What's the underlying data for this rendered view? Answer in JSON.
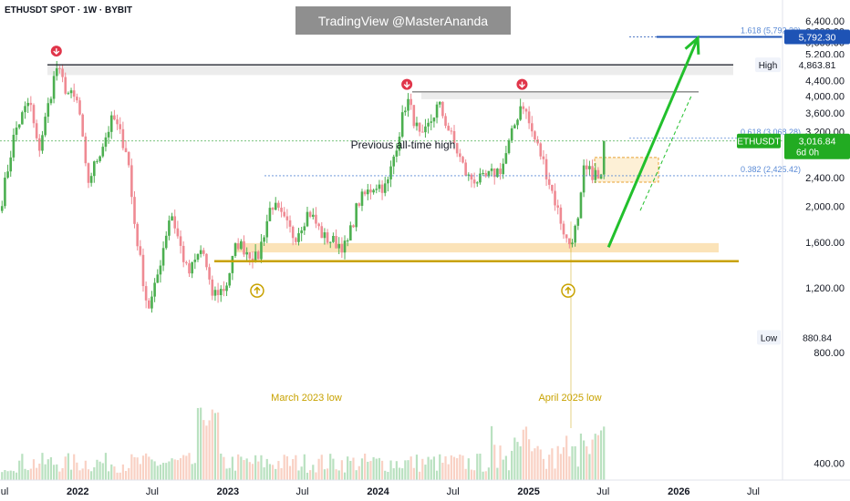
{
  "header": {
    "symbol_line": "ETHUSDT SPOT · 1W · BYBIT",
    "watermark": "TradingView @MasterAnanda"
  },
  "labels": {
    "previous_ath": "Previous all-time high",
    "march_low": "March 2023 low",
    "april_low": "April 2025 low",
    "high_tag": "High",
    "low_tag": "Low",
    "symbol_tag": "ETHUSDT",
    "countdown": "6d 0h"
  },
  "colors": {
    "up": "#22ab22",
    "down": "#f7525f",
    "up_candle": "#4caf50",
    "down_candle": "#ef8a93",
    "gold": "#c8a200",
    "sand": "#fbe3b8",
    "blue": "#1e53b5",
    "fib_blue": "#5b8bd6",
    "arrow_green": "#22c02c",
    "marker_red": "#e0354a"
  },
  "chart_data": {
    "type": "candlestick",
    "y_scale": "log",
    "ylim": [
      360,
      7300
    ],
    "y_ticks": [
      {
        "value": 400,
        "label": "400.00"
      },
      {
        "value": 800,
        "label": "800.00"
      },
      {
        "value": 1200,
        "label": "1,200.00"
      },
      {
        "value": 1600,
        "label": "1,600.00"
      },
      {
        "value": 2000,
        "label": "2,000.00"
      },
      {
        "value": 2400,
        "label": "2,400.00"
      },
      {
        "value": 2800,
        "label": "2,800.00"
      },
      {
        "value": 3200,
        "label": "3,200.00"
      },
      {
        "value": 3600,
        "label": "3,600.00"
      },
      {
        "value": 4000,
        "label": "4,000.00"
      },
      {
        "value": 4400,
        "label": "4,400.00"
      },
      {
        "value": 4800,
        "label": "4,800.00"
      },
      {
        "value": 5200,
        "label": "5,200.00"
      },
      {
        "value": 5600,
        "label": "5,600.00"
      },
      {
        "value": 6000,
        "label": "6,000.00"
      },
      {
        "value": 6400,
        "label": "6,400.00"
      }
    ],
    "x_ticks": [
      {
        "date": "2021-07-01",
        "label": "Jul"
      },
      {
        "date": "2022-01-01",
        "label": "2022"
      },
      {
        "date": "2022-07-01",
        "label": "Jul"
      },
      {
        "date": "2023-01-01",
        "label": "2023"
      },
      {
        "date": "2023-07-01",
        "label": "Jul"
      },
      {
        "date": "2024-01-01",
        "label": "2024"
      },
      {
        "date": "2024-07-01",
        "label": "Jul"
      },
      {
        "date": "2025-01-01",
        "label": "2025"
      },
      {
        "date": "2025-07-01",
        "label": "Jul"
      },
      {
        "date": "2026-01-01",
        "label": "2026"
      },
      {
        "date": "2026-07-01",
        "label": "Jul"
      }
    ],
    "x_range": [
      "2021-06-26",
      "2026-09-10"
    ],
    "price_path": [
      [
        "2021-07-01",
        2100
      ],
      [
        "2021-08-01",
        3200
      ],
      [
        "2021-09-06",
        3900
      ],
      [
        "2021-09-27",
        2800
      ],
      [
        "2021-11-10",
        4800
      ],
      [
        "2021-12-06",
        4100
      ],
      [
        "2022-01-03",
        3800
      ],
      [
        "2022-01-24",
        2300
      ],
      [
        "2022-03-28",
        3500
      ],
      [
        "2022-05-02",
        2800
      ],
      [
        "2022-05-16",
        1900
      ],
      [
        "2022-06-20",
        1050
      ],
      [
        "2022-07-04",
        1150
      ],
      [
        "2022-08-15",
        1950
      ],
      [
        "2022-09-26",
        1300
      ],
      [
        "2022-10-31",
        1550
      ],
      [
        "2022-11-21",
        1150
      ],
      [
        "2022-12-26",
        1200
      ],
      [
        "2023-01-23",
        1600
      ],
      [
        "2023-03-13",
        1430
      ],
      [
        "2023-04-17",
        2050
      ],
      [
        "2023-06-12",
        1650
      ],
      [
        "2023-07-17",
        1950
      ],
      [
        "2023-08-21",
        1650
      ],
      [
        "2023-10-16",
        1550
      ],
      [
        "2023-11-13",
        2050
      ],
      [
        "2023-12-25",
        2300
      ],
      [
        "2024-01-22",
        2250
      ],
      [
        "2024-03-11",
        3950
      ],
      [
        "2024-04-15",
        3000
      ],
      [
        "2024-05-27",
        3800
      ],
      [
        "2024-08-05",
        2400
      ],
      [
        "2024-09-09",
        2350
      ],
      [
        "2024-10-28",
        2550
      ],
      [
        "2024-12-16",
        3900
      ],
      [
        "2025-01-06",
        3250
      ],
      [
        "2025-02-03",
        2700
      ],
      [
        "2025-03-10",
        2000
      ],
      [
        "2025-04-07",
        1560
      ],
      [
        "2025-05-05",
        1850
      ],
      [
        "2025-05-12",
        2500
      ],
      [
        "2025-06-16",
        2450
      ],
      [
        "2025-06-23",
        2250
      ],
      [
        "2025-07-07",
        3016.84
      ]
    ],
    "levels": {
      "high": 4863.81,
      "low": 880.84,
      "last": 3016.84,
      "fib_0382": 2425.42,
      "fib_0618": 3068.28,
      "fib_1618": 5792.3,
      "march_2023_low": 1420,
      "prev_ath_zone": [
        4560,
        4880
      ],
      "top_2024_zone": [
        3920,
        4080
      ],
      "support_zone": [
        1500,
        1590
      ]
    },
    "price_labels": {
      "high": "4,863.81",
      "low": "880.84",
      "last": "3,016.84",
      "fib_1618_axis": "5,792.30"
    },
    "fib_labels": {
      "fib_0382": "0.382 (2,425.42)",
      "fib_0618": "0.618 (3,068.28)",
      "fib_1618": "1.618 (5,792.30)"
    },
    "projection": {
      "from": [
        "2025-07-14",
        1550
      ],
      "to": [
        "2026-02-16",
        5750
      ]
    },
    "markers_down": [
      [
        "2021-11-10",
        5300
      ],
      [
        "2024-03-11",
        4300
      ],
      [
        "2024-12-16",
        4300
      ]
    ],
    "markers_up": [
      [
        "2023-03-13",
        1180
      ],
      [
        "2025-04-07",
        1180
      ]
    ]
  }
}
